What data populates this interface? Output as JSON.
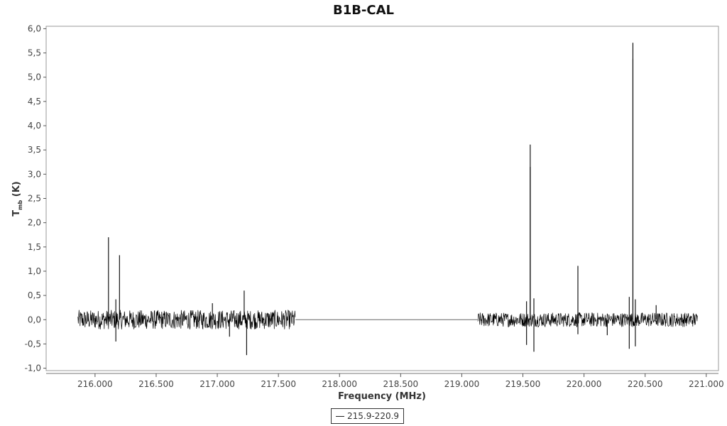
{
  "chart_data": {
    "type": "line",
    "title": "B1B-CAL",
    "xlabel": "Frequency (MHz)",
    "ylabel_main": "T",
    "ylabel_sub": "mb",
    "ylabel_unit": " (K)",
    "xlim": [
      215.6,
      221.1
    ],
    "ylim": [
      -1.05,
      6.05
    ],
    "x_ticks": [
      216.0,
      216.5,
      217.0,
      217.5,
      218.0,
      218.5,
      219.0,
      219.5,
      220.0,
      220.5,
      221.0
    ],
    "x_tick_labels": [
      "216.000",
      "216.500",
      "217.000",
      "217.500",
      "218.000",
      "218.500",
      "219.000",
      "219.500",
      "220.000",
      "220.500",
      "221.000"
    ],
    "y_ticks": [
      -1.0,
      -0.5,
      0.0,
      0.5,
      1.0,
      1.5,
      2.0,
      2.5,
      3.0,
      3.5,
      4.0,
      4.5,
      5.0,
      5.5,
      6.0
    ],
    "y_tick_labels": [
      "-1,0",
      "-0,5",
      "0,0",
      "0,5",
      "1,0",
      "1,5",
      "2,0",
      "2,5",
      "3,0",
      "3,5",
      "4,0",
      "4,5",
      "5,0",
      "5,5",
      "6,0"
    ],
    "grid": false,
    "legend_position": "bottom-center",
    "series": [
      {
        "name": "215.9-220.9",
        "color": "#000000",
        "segments": [
          {
            "x_start": 215.86,
            "x_end": 217.64,
            "noise_amplitude": 0.2
          },
          {
            "x_start": 219.13,
            "x_end": 220.93,
            "noise_amplitude": 0.15
          }
        ],
        "gap_baseline": {
          "x_start": 217.64,
          "x_end": 219.13,
          "y": 0.0
        },
        "peaks": [
          {
            "x": 216.11,
            "y": 1.7
          },
          {
            "x": 216.17,
            "y": 0.42
          },
          {
            "x": 216.17,
            "y": -0.45
          },
          {
            "x": 216.2,
            "y": 1.33
          },
          {
            "x": 216.96,
            "y": 0.34
          },
          {
            "x": 217.22,
            "y": 0.6
          },
          {
            "x": 217.24,
            "y": -0.73
          },
          {
            "x": 217.1,
            "y": -0.35
          },
          {
            "x": 219.53,
            "y": 0.38
          },
          {
            "x": 219.53,
            "y": -0.52
          },
          {
            "x": 219.56,
            "y": 3.61
          },
          {
            "x": 219.56,
            "y": 3.15
          },
          {
            "x": 219.59,
            "y": 0.44
          },
          {
            "x": 219.59,
            "y": -0.66
          },
          {
            "x": 219.95,
            "y": 1.11
          },
          {
            "x": 219.95,
            "y": -0.3
          },
          {
            "x": 220.19,
            "y": -0.32
          },
          {
            "x": 220.37,
            "y": 0.47
          },
          {
            "x": 220.37,
            "y": -0.6
          },
          {
            "x": 220.4,
            "y": 5.71
          },
          {
            "x": 220.4,
            "y": 5.38
          },
          {
            "x": 220.42,
            "y": 0.42
          },
          {
            "x": 220.42,
            "y": -0.55
          },
          {
            "x": 220.59,
            "y": 0.3
          }
        ]
      }
    ]
  }
}
